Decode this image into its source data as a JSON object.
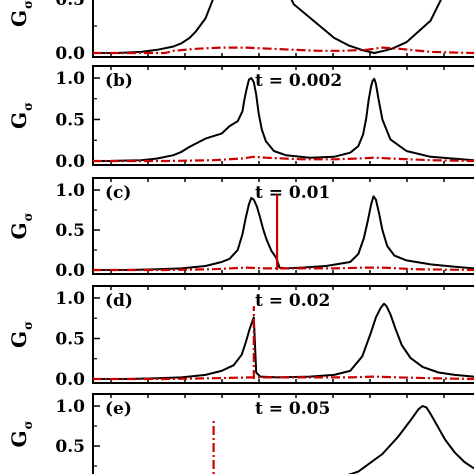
{
  "chart_data": [
    {
      "type": "line",
      "panel_label": "",
      "annotation": "",
      "ylabel": "G",
      "ylabel_sub": "σ",
      "ylim": [
        0.0,
        1.15
      ],
      "yticks": [
        "0.0",
        "0.5"
      ],
      "series": [
        {
          "color": "#000000",
          "style": "solid",
          "x": [
            0,
            30,
            60,
            80,
            100,
            110,
            120,
            128,
            140,
            160,
            200,
            250,
            300,
            318,
            330,
            338,
            344,
            350,
            356,
            362,
            372,
            390,
            420,
            460,
            474
          ],
          "y": [
            0,
            0,
            0.01,
            0.03,
            0.06,
            0.09,
            0.14,
            0.2,
            0.32,
            0.7,
            1.2,
            0.45,
            0.14,
            0.07,
            0.04,
            0.02,
            0.01,
            0,
            0.01,
            0.02,
            0.04,
            0.1,
            0.3,
            0.9,
            1.2
          ]
        },
        {
          "color": "#cc0000",
          "style": "dashdot",
          "x": [
            0,
            90,
            100,
            130,
            160,
            190,
            220,
            250,
            280,
            310,
            340,
            360,
            380,
            420,
            474
          ],
          "y": [
            0,
            0,
            0.02,
            0.04,
            0.05,
            0.05,
            0.04,
            0.03,
            0.02,
            0.02,
            0.03,
            0.05,
            0.04,
            0.01,
            0
          ]
        }
      ]
    },
    {
      "type": "line",
      "panel_label": "(b)",
      "annotation": "t = 0.002",
      "ylabel": "G",
      "ylabel_sub": "σ",
      "ylim": [
        0.0,
        1.15
      ],
      "yticks": [
        "0.0",
        "0.5",
        "1.0"
      ],
      "series": [
        {
          "color": "#000000",
          "style": "solid",
          "x": [
            0,
            20,
            60,
            80,
            100,
            110,
            120,
            140,
            160,
            170,
            180,
            186,
            188,
            191,
            194,
            197,
            200,
            203,
            206,
            210,
            215,
            225,
            240,
            270,
            300,
            320,
            330,
            336,
            340,
            343,
            346,
            348,
            350,
            352,
            355,
            360,
            370,
            390,
            420,
            474
          ],
          "y": [
            0,
            0,
            0.01,
            0.03,
            0.07,
            0.11,
            0.17,
            0.27,
            0.33,
            0.42,
            0.48,
            0.6,
            0.72,
            0.86,
            0.98,
            1.0,
            0.95,
            0.8,
            0.58,
            0.38,
            0.24,
            0.12,
            0.07,
            0.04,
            0.05,
            0.1,
            0.18,
            0.32,
            0.52,
            0.74,
            0.9,
            0.97,
            0.99,
            0.93,
            0.76,
            0.5,
            0.26,
            0.12,
            0.05,
            0.01
          ]
        },
        {
          "color": "#cc0000",
          "style": "dashdot",
          "x": [
            0,
            90,
            150,
            185,
            200,
            215,
            260,
            300,
            330,
            350,
            370,
            420,
            474
          ],
          "y": [
            0,
            0,
            0.01,
            0.03,
            0.05,
            0.04,
            0.02,
            0.02,
            0.03,
            0.04,
            0.03,
            0.01,
            0
          ]
        }
      ]
    },
    {
      "type": "line",
      "panel_label": "(c)",
      "annotation": "t = 0.01",
      "ylabel": "G",
      "ylabel_sub": "σ",
      "ylim": [
        0.0,
        1.15
      ],
      "yticks": [
        "0.0",
        "0.5",
        "1.0"
      ],
      "series": [
        {
          "color": "#000000",
          "style": "solid",
          "x": [
            0,
            40,
            80,
            110,
            140,
            160,
            170,
            180,
            186,
            190,
            194,
            197,
            200,
            204,
            208,
            212,
            216,
            222,
            228,
            232,
            240,
            260,
            290,
            320,
            330,
            337,
            342,
            346,
            349,
            352,
            356,
            360,
            366,
            375,
            390,
            420,
            450,
            474
          ],
          "y": [
            0,
            0,
            0.01,
            0.02,
            0.05,
            0.1,
            0.14,
            0.25,
            0.45,
            0.65,
            0.82,
            0.9,
            0.88,
            0.79,
            0.65,
            0.5,
            0.38,
            0.24,
            0.15,
            0.03,
            0.02,
            0.03,
            0.05,
            0.1,
            0.2,
            0.4,
            0.62,
            0.82,
            0.92,
            0.88,
            0.7,
            0.5,
            0.3,
            0.18,
            0.12,
            0.07,
            0.04,
            0.02
          ]
        },
        {
          "color": "#cc0000",
          "style": "solid",
          "x": [
            229,
            229
          ],
          "y": [
            0.0,
            0.94
          ]
        },
        {
          "color": "#cc0000",
          "style": "dashdot",
          "x": [
            0,
            90,
            150,
            190,
            215,
            245,
            300,
            340,
            360,
            400,
            474
          ],
          "y": [
            0,
            0,
            0.01,
            0.03,
            0.02,
            0.02,
            0.02,
            0.03,
            0.03,
            0.01,
            0
          ]
        }
      ]
    },
    {
      "type": "line",
      "panel_label": "(d)",
      "annotation": "t = 0.02",
      "ylabel": "G",
      "ylabel_sub": "σ",
      "ylim": [
        0.0,
        1.15
      ],
      "yticks": [
        "0.0",
        "0.5",
        "1.0"
      ],
      "series": [
        {
          "color": "#000000",
          "style": "solid",
          "x": [
            0,
            40,
            80,
            110,
            140,
            160,
            175,
            185,
            190,
            195,
            200,
            203,
            208,
            230,
            270,
            300,
            320,
            335,
            345,
            352,
            358,
            362,
            365,
            370,
            376,
            384,
            395,
            410,
            430,
            450,
            474
          ],
          "y": [
            0,
            0,
            0.01,
            0.02,
            0.05,
            0.1,
            0.17,
            0.3,
            0.45,
            0.62,
            0.76,
            0.08,
            0.03,
            0.02,
            0.03,
            0.05,
            0.1,
            0.28,
            0.55,
            0.76,
            0.88,
            0.93,
            0.9,
            0.8,
            0.63,
            0.42,
            0.26,
            0.15,
            0.08,
            0.05,
            0.03
          ]
        },
        {
          "color": "#cc0000",
          "style": "dashdot",
          "x": [
            200,
            200
          ],
          "y": [
            0.0,
            0.9
          ]
        },
        {
          "color": "#cc0000",
          "style": "dashdot",
          "x": [
            0,
            90,
            150,
            198,
            210,
            260,
            320,
            350,
            380,
            420,
            474
          ],
          "y": [
            0,
            0,
            0.01,
            0.02,
            0.02,
            0.02,
            0.02,
            0.03,
            0.02,
            0.01,
            0
          ]
        }
      ]
    },
    {
      "type": "line",
      "panel_label": "(e)",
      "annotation": "t = 0.05",
      "ylabel": "G",
      "ylabel_sub": "σ",
      "ylim": [
        0.0,
        1.15
      ],
      "yticks": [
        "0.5",
        "1.0"
      ],
      "series": [
        {
          "color": "#000000",
          "style": "solid",
          "x": [
            300,
            330,
            360,
            380,
            395,
            405,
            410,
            415,
            420,
            428,
            438,
            450,
            462,
            474
          ],
          "y": [
            0.08,
            0.18,
            0.4,
            0.62,
            0.82,
            0.96,
            1.0,
            0.98,
            0.9,
            0.76,
            0.58,
            0.42,
            0.3,
            0.22
          ]
        },
        {
          "color": "#cc0000",
          "style": "dashdot",
          "x": [
            150,
            150
          ],
          "y": [
            0.0,
            0.85
          ]
        }
      ]
    }
  ]
}
